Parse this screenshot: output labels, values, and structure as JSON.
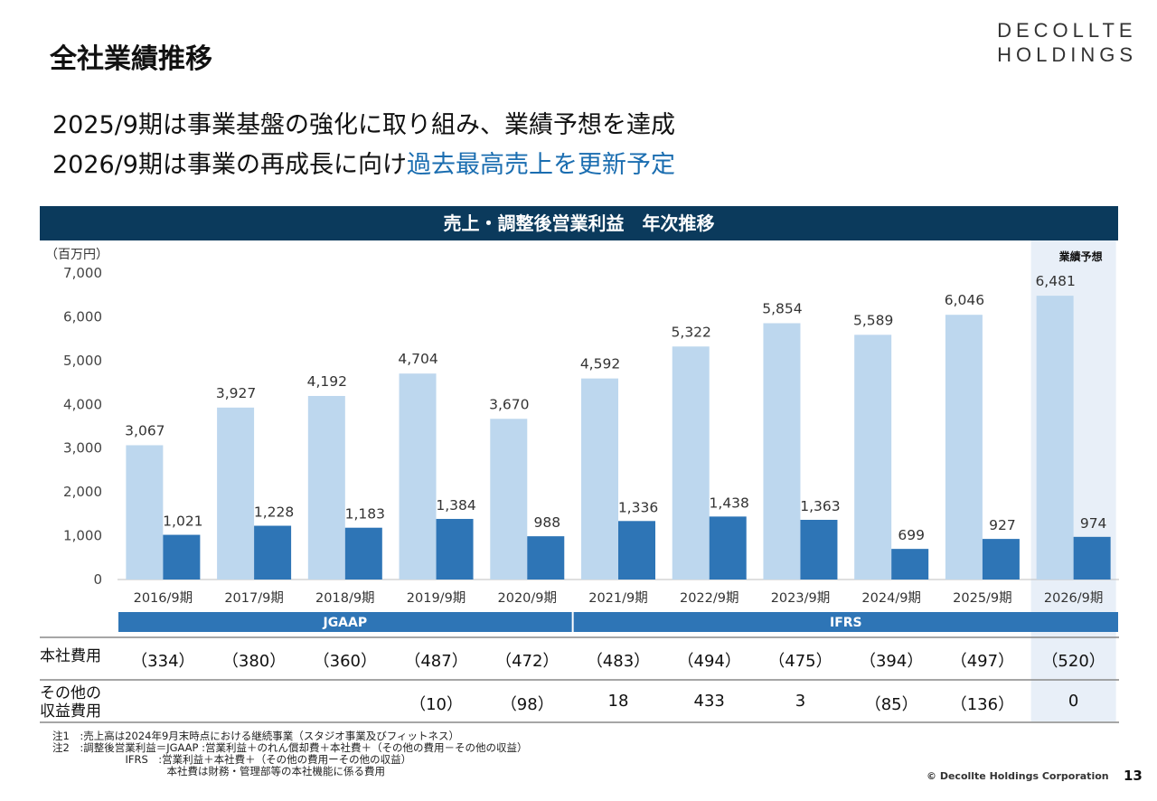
{
  "header": {
    "title": "全社業績推移",
    "logo_line1": "DECOLLTE",
    "logo_line2": "HOLDINGS"
  },
  "headline": {
    "line1": "2025/9期は事業基盤の強化に取り組み、業績予想を達成",
    "line2_prefix": "2026/9期は事業の再成長に向け",
    "line2_accent": "過去最高売上を更新予定"
  },
  "chart_header": "売上・調整後営業利益　年次推移",
  "chart_data": {
    "type": "bar",
    "title": "売上・調整後営業利益　年次推移",
    "unit_label": "（百万円）",
    "forecast_label": "業績予想",
    "categories": [
      "2016/9期",
      "2017/9期",
      "2018/9期",
      "2019/9期",
      "2020/9期",
      "2021/9期",
      "2022/9期",
      "2023/9期",
      "2024/9期",
      "2025/9期",
      "2026/9期"
    ],
    "series": [
      {
        "name": "売上",
        "values": [
          3067,
          3927,
          4192,
          4704,
          3670,
          4592,
          5322,
          5854,
          5589,
          6046,
          6481
        ],
        "labels": [
          "3,067",
          "3,927",
          "4,192",
          "4,704",
          "3,670",
          "4,592",
          "5,322",
          "5,854",
          "5,589",
          "6,046",
          "6,481"
        ]
      },
      {
        "name": "調整後営業利益",
        "values": [
          1021,
          1228,
          1183,
          1384,
          988,
          1336,
          1438,
          1363,
          699,
          927,
          974
        ],
        "labels": [
          "1,021",
          "1,228",
          "1,183",
          "1,384",
          "988",
          "1,336",
          "1,438",
          "1,363",
          "699",
          "927",
          "974"
        ]
      }
    ],
    "ylim": [
      0,
      7000
    ],
    "yticks": [
      0,
      1000,
      2000,
      3000,
      4000,
      5000,
      6000,
      7000
    ],
    "ytick_labels": [
      "0",
      "1,000",
      "2,000",
      "3,000",
      "4,000",
      "5,000",
      "6,000",
      "7,000"
    ],
    "standards": [
      {
        "label": "JGAAP",
        "from": 0,
        "to": 4
      },
      {
        "label": "IFRS",
        "from": 5,
        "to": 10
      }
    ],
    "forecast_index": 10,
    "colors": {
      "sales": "#bdd7ee",
      "profit": "#2e75b6",
      "standard_band": "#2e75b6",
      "forecast_bg": "#e8eff8"
    }
  },
  "table": {
    "rows": [
      {
        "label": "本社費用",
        "values": [
          "（334）",
          "（380）",
          "（360）",
          "（487）",
          "（472）",
          "（483）",
          "（494）",
          "（475）",
          "（394）",
          "（497）",
          "（520）"
        ]
      },
      {
        "label": "その他の\n収益費用",
        "values": [
          "",
          "",
          "",
          "（10）",
          "（98）",
          "18",
          "433",
          "3",
          "（85）",
          "（136）",
          "0"
        ]
      }
    ]
  },
  "notes": [
    "注1　:売上高は2024年9月末時点における継続事業（スタジオ事業及びフィットネス）",
    "注2　:調整後営業利益＝JGAAP :営業利益＋のれん償却費＋本社費＋（その他の費用－その他の収益）",
    "　　　　　　　IFRS　:営業利益＋本社費＋（その他の費用ーその他の収益）",
    "　　　　　　　　　　　本社費は財務・管理部等の本社機能に係る費用"
  ],
  "footer": {
    "copyright": "© Decollte Holdings Corporation",
    "page_number": "13"
  }
}
